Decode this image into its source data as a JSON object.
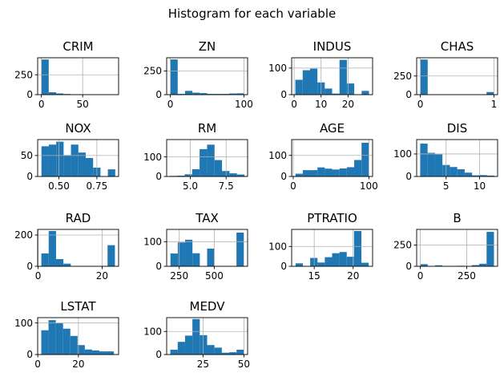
{
  "figure": {
    "title": "Histogram for each variable"
  },
  "style": {
    "bar_color": "#1f77b4",
    "grid_color": "#b0b0b0",
    "axis_color": "#000000"
  },
  "chart_data": [
    {
      "type": "bar",
      "title": "CRIM",
      "grid": true,
      "xlim": [
        -4.5,
        93.5
      ],
      "ylim": [
        0,
        464
      ],
      "xticks": [
        {
          "v": 0,
          "label": "0"
        },
        {
          "v": 50,
          "label": "50"
        }
      ],
      "yticks": [
        {
          "v": 0,
          "label": "0"
        },
        {
          "v": 250,
          "label": "250"
        }
      ],
      "bin_edges": [
        0.0063,
        8.9029,
        17.7995,
        26.6961,
        35.5927,
        44.4893,
        53.3859,
        62.2825,
        71.1791,
        80.0757,
        88.9723
      ],
      "values": [
        442,
        30,
        15,
        8,
        4,
        1,
        1,
        1,
        1,
        3
      ]
    },
    {
      "type": "bar",
      "title": "ZN",
      "grid": true,
      "xlim": [
        -5,
        105
      ],
      "ylim": [
        0,
        390
      ],
      "xticks": [
        {
          "v": 0,
          "label": "0"
        },
        {
          "v": 100,
          "label": "100"
        }
      ],
      "yticks": [
        {
          "v": 0,
          "label": "0"
        },
        {
          "v": 250,
          "label": "250"
        }
      ],
      "bin_edges": [
        0,
        10,
        20,
        30,
        40,
        50,
        60,
        70,
        80,
        90,
        100
      ],
      "values": [
        372,
        8,
        40,
        21,
        16,
        8,
        8,
        8,
        12,
        14
      ]
    },
    {
      "type": "bar",
      "title": "INDUS",
      "grid": true,
      "xlim": [
        -0.9,
        29.1
      ],
      "ylim": [
        0,
        139
      ],
      "xticks": [
        {
          "v": 0,
          "label": "0"
        },
        {
          "v": 10,
          "label": "10"
        },
        {
          "v": 20,
          "label": "20"
        }
      ],
      "yticks": [
        {
          "v": 0,
          "label": "0"
        },
        {
          "v": 100,
          "label": "100"
        }
      ],
      "bin_edges": [
        0.46,
        3.19,
        5.92,
        8.65,
        11.38,
        14.11,
        16.84,
        19.57,
        22.3,
        25.03,
        27.76
      ],
      "values": [
        56,
        92,
        98,
        46,
        23,
        4,
        131,
        42,
        0,
        14
      ]
    },
    {
      "type": "bar",
      "title": "CHAS",
      "grid": true,
      "xlim": [
        -0.05,
        1.05
      ],
      "ylim": [
        0,
        495
      ],
      "xticks": [
        {
          "v": 0,
          "label": "0"
        },
        {
          "v": 1,
          "label": "1"
        }
      ],
      "yticks": [
        {
          "v": 0,
          "label": "0"
        },
        {
          "v": 250,
          "label": "250"
        }
      ],
      "bin_edges": [
        0,
        0.1,
        0.2,
        0.3,
        0.4,
        0.5,
        0.6,
        0.7,
        0.8,
        0.9,
        1.0
      ],
      "values": [
        471,
        0,
        0,
        0,
        0,
        0,
        0,
        0,
        0,
        35
      ]
    },
    {
      "type": "bar",
      "title": "NOX",
      "grid": true,
      "xlim": [
        0.36,
        0.893
      ],
      "ylim": [
        0,
        88
      ],
      "xticks": [
        {
          "v": 0.5,
          "label": "0.50"
        },
        {
          "v": 0.75,
          "label": "0.75"
        }
      ],
      "yticks": [
        {
          "v": 0,
          "label": "0"
        },
        {
          "v": 50,
          "label": "50"
        }
      ],
      "bin_edges": [
        0.385,
        0.4336,
        0.4822,
        0.5308,
        0.5794,
        0.628,
        0.6766,
        0.7252,
        0.7738,
        0.8224,
        0.871
      ],
      "values": [
        72,
        76,
        83,
        51,
        76,
        57,
        44,
        21,
        0,
        17
      ]
    },
    {
      "type": "bar",
      "title": "RM",
      "grid": true,
      "xlim": [
        3.35,
        9.0
      ],
      "ylim": [
        0,
        189
      ],
      "xticks": [
        {
          "v": 5,
          "label": "5.0"
        },
        {
          "v": 7.5,
          "label": "7.5"
        }
      ],
      "yticks": [
        {
          "v": 0,
          "label": "0"
        },
        {
          "v": 100,
          "label": "100"
        }
      ],
      "bin_edges": [
        3.561,
        4.0829,
        4.6048,
        5.1267,
        5.6486,
        6.1705,
        6.6924,
        7.2143,
        7.7362,
        8.2581,
        8.78
      ],
      "values": [
        3,
        4,
        11,
        37,
        140,
        163,
        84,
        28,
        16,
        10
      ]
    },
    {
      "type": "bar",
      "title": "AGE",
      "grid": true,
      "xlim": [
        -2.1,
        104.9
      ],
      "ylim": [
        0,
        175
      ],
      "xticks": [
        {
          "v": 0,
          "label": "0"
        },
        {
          "v": 100,
          "label": "100"
        }
      ],
      "yticks": [
        {
          "v": 0,
          "label": "0"
        },
        {
          "v": 100,
          "label": "100"
        }
      ],
      "bin_edges": [
        2.9,
        12.61,
        22.32,
        32.03,
        41.74,
        51.45,
        61.16,
        70.87,
        80.58,
        90.29,
        100
      ],
      "values": [
        13,
        30,
        30,
        43,
        37,
        33,
        38,
        44,
        78,
        160
      ]
    },
    {
      "type": "bar",
      "title": "DIS",
      "grid": true,
      "xlim": [
        0.6,
        12.7
      ],
      "ylim": [
        0,
        164
      ],
      "xticks": [
        {
          "v": 5,
          "label": "5"
        },
        {
          "v": 10,
          "label": "10"
        }
      ],
      "yticks": [
        {
          "v": 0,
          "label": "0"
        },
        {
          "v": 100,
          "label": "100"
        }
      ],
      "bin_edges": [
        1.1296,
        2.2373,
        3.345,
        4.4527,
        5.5604,
        6.6681,
        7.7758,
        8.8835,
        9.9912,
        11.0989,
        12.2066
      ],
      "values": [
        146,
        105,
        98,
        51,
        42,
        32,
        17,
        5,
        6,
        4
      ]
    },
    {
      "type": "bar",
      "title": "RAD",
      "grid": true,
      "xlim": [
        -0.15,
        25.15
      ],
      "ylim": [
        0,
        236
      ],
      "xticks": [
        {
          "v": 0,
          "label": "0"
        },
        {
          "v": 20,
          "label": "20"
        }
      ],
      "yticks": [
        {
          "v": 0,
          "label": "0"
        },
        {
          "v": 200,
          "label": "200"
        }
      ],
      "bin_edges": [
        1,
        3.3,
        5.6,
        7.9,
        10.2,
        12.5,
        14.8,
        17.1,
        19.4,
        21.7,
        24
      ],
      "values": [
        82,
        226,
        46,
        17,
        0,
        0,
        0,
        0,
        0,
        135
      ]
    },
    {
      "type": "bar",
      "title": "TAX",
      "grid": true,
      "xlim": [
        160,
        738
      ],
      "ylim": [
        0,
        150
      ],
      "xticks": [
        {
          "v": 250,
          "label": "250"
        },
        {
          "v": 500,
          "label": "500"
        }
      ],
      "yticks": [
        {
          "v": 0,
          "label": "0"
        },
        {
          "v": 100,
          "label": "100"
        }
      ],
      "bin_edges": [
        187,
        239.4,
        291.8,
        344.2,
        396.6,
        449,
        501.4,
        553.8,
        606.2,
        658.6,
        711
      ],
      "values": [
        52,
        97,
        108,
        53,
        0,
        72,
        0,
        0,
        0,
        137
      ]
    },
    {
      "type": "bar",
      "title": "PTRATIO",
      "grid": true,
      "xlim": [
        12.1,
        22.5
      ],
      "ylim": [
        0,
        186
      ],
      "xticks": [
        {
          "v": 15,
          "label": "15"
        },
        {
          "v": 20,
          "label": "20"
        }
      ],
      "yticks": [
        {
          "v": 0,
          "label": "0"
        },
        {
          "v": 100,
          "label": "100"
        }
      ],
      "bin_edges": [
        12.6,
        13.54,
        14.48,
        15.42,
        16.36,
        17.3,
        18.24,
        19.18,
        20.12,
        21.06,
        22
      ],
      "values": [
        15,
        2,
        42,
        19,
        46,
        66,
        72,
        48,
        178,
        18
      ]
    },
    {
      "type": "bar",
      "title": "B",
      "grid": true,
      "xlim": [
        -19.5,
        416.5
      ],
      "ylim": [
        0,
        434
      ],
      "xticks": [
        {
          "v": 0,
          "label": "0"
        },
        {
          "v": 250,
          "label": "250"
        }
      ],
      "yticks": [
        {
          "v": 0,
          "label": "0"
        },
        {
          "v": 250,
          "label": "250"
        }
      ],
      "bin_edges": [
        0.32,
        39.97,
        79.63,
        119.28,
        158.94,
        198.59,
        238.24,
        277.9,
        317.55,
        357.21,
        396.9
      ],
      "values": [
        25,
        2,
        12,
        4,
        4,
        6,
        4,
        14,
        30,
        405
      ]
    },
    {
      "type": "bar",
      "title": "LSTAT",
      "grid": true,
      "xlim": [
        -0.05,
        39.75
      ],
      "ylim": [
        0,
        117
      ],
      "xticks": [
        {
          "v": 0,
          "label": "0"
        },
        {
          "v": 20,
          "label": "20"
        }
      ],
      "yticks": [
        {
          "v": 0,
          "label": "0"
        },
        {
          "v": 100,
          "label": "100"
        }
      ],
      "bin_edges": [
        1.73,
        5.3,
        8.87,
        12.44,
        16.01,
        19.58,
        23.15,
        26.72,
        30.29,
        33.86,
        37.43
      ],
      "values": [
        77,
        109,
        100,
        82,
        59,
        30,
        16,
        13,
        10,
        10
      ]
    },
    {
      "type": "bar",
      "title": "MEDV",
      "grid": true,
      "xlim": [
        2.75,
        52.25
      ],
      "ylim": [
        0,
        160
      ],
      "xticks": [
        {
          "v": 25,
          "label": "25"
        },
        {
          "v": 50,
          "label": "50"
        }
      ],
      "yticks": [
        {
          "v": 0,
          "label": "0"
        },
        {
          "v": 100,
          "label": "100"
        }
      ],
      "bin_edges": [
        5,
        9.5,
        14,
        18.5,
        23,
        27.5,
        32,
        36.5,
        41,
        45.5,
        50
      ],
      "values": [
        21,
        55,
        82,
        154,
        84,
        41,
        30,
        8,
        10,
        21
      ]
    }
  ]
}
